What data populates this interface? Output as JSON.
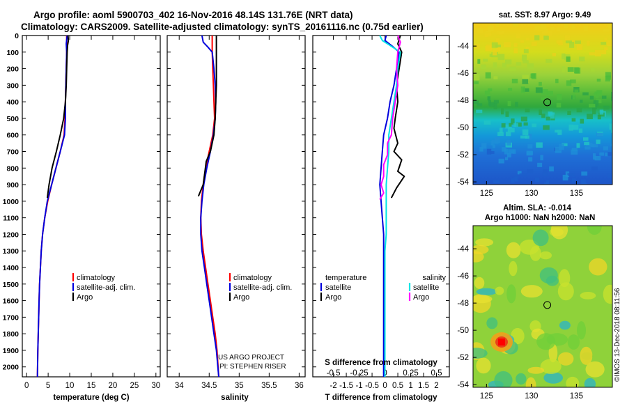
{
  "header": {
    "line1": "Argo profile: aoml 5900703_402 16-Nov-2016 48.14S 131.76E (NRT data)",
    "line2": "Climatology: CARS2009. Satellite-adjusted climatology: synTS_20161116.nc (0.75d earlier)"
  },
  "notes": {
    "project": "US ARGO PROJECT",
    "pi": "PI: STEPHEN RISER",
    "credit": "©IMOS 13-Dec-2018 08:11:56"
  },
  "colors": {
    "climatology": "#ff0000",
    "satellite": "#0000dd",
    "argo": "#000000",
    "satellite_salinity": "#00e5e5",
    "argo_salinity": "#ff00ff"
  },
  "chart_data": [
    {
      "type": "line",
      "name": "temperature",
      "xlabel": "temperature (deg C)",
      "xlim": [
        -1,
        31
      ],
      "ylim": [
        2060,
        0
      ],
      "xticks": [
        "0",
        "5",
        "10",
        "15",
        "20",
        "25",
        "30"
      ],
      "yticks": [
        "0",
        "100",
        "200",
        "300",
        "400",
        "500",
        "600",
        "700",
        "800",
        "900",
        "1000",
        "1100",
        "1200",
        "1300",
        "1400",
        "1500",
        "1600",
        "1700",
        "1800",
        "1900",
        "2000"
      ],
      "legend": {
        "placement": "bottom-right",
        "entries": [
          "climatology",
          "satellite-adj. clim.",
          "Argo"
        ]
      },
      "series": [
        {
          "name": "climatology",
          "color": "#ff0000",
          "x": [
            9.3,
            9.3,
            9.2,
            9.1,
            9.0,
            8.9,
            8.7,
            7.8,
            6.8,
            5.8,
            4.9,
            4.2,
            3.7,
            3.4,
            3.2,
            3.0,
            2.9,
            2.8,
            2.7,
            2.6,
            2.5
          ],
          "y": [
            0,
            100,
            200,
            300,
            400,
            500,
            600,
            700,
            800,
            900,
            1000,
            1100,
            1200,
            1300,
            1400,
            1500,
            1600,
            1700,
            1800,
            1900,
            2060
          ]
        },
        {
          "name": "satellite-adj. clim.",
          "color": "#0000dd",
          "x": [
            9.4,
            9.2,
            9.3,
            9.2,
            9.1,
            9.0,
            9.0,
            8.8,
            7.8,
            6.8,
            5.8,
            4.8,
            4.2,
            3.7,
            3.4,
            3.2,
            3.0,
            2.9,
            2.8,
            2.7,
            2.6,
            2.5
          ],
          "y": [
            0,
            50,
            100,
            200,
            300,
            400,
            500,
            600,
            700,
            800,
            900,
            1000,
            1100,
            1200,
            1300,
            1400,
            1500,
            1600,
            1700,
            1800,
            1900,
            2060
          ]
        },
        {
          "name": "Argo",
          "color": "#000000",
          "x": [
            9.6,
            9.7,
            9.5,
            9.4,
            9.3,
            9.2,
            9.0,
            8.6,
            7.8,
            6.9,
            5.9,
            5.2,
            4.8
          ],
          "y": [
            0,
            30,
            60,
            100,
            200,
            300,
            400,
            500,
            600,
            700,
            800,
            900,
            980
          ]
        }
      ]
    },
    {
      "type": "line",
      "name": "salinity",
      "xlabel": "salinity",
      "xlim": [
        33.8,
        36.1
      ],
      "ylim": [
        2060,
        0
      ],
      "xticks": [
        "34",
        "34.5",
        "35",
        "35.5",
        "36"
      ],
      "legend": {
        "placement": "bottom-right",
        "entries": [
          "climatology",
          "satellite-adj. clim.",
          "Argo"
        ]
      },
      "series": [
        {
          "name": "climatology",
          "color": "#ff0000",
          "x": [
            34.55,
            34.55,
            34.56,
            34.57,
            34.58,
            34.59,
            34.56,
            34.5,
            34.44,
            34.4,
            34.37,
            34.36,
            34.37,
            34.4,
            34.44,
            34.48,
            34.52,
            34.56,
            34.6,
            34.63,
            34.66
          ],
          "y": [
            0,
            100,
            200,
            300,
            400,
            500,
            600,
            700,
            800,
            900,
            1000,
            1100,
            1200,
            1300,
            1400,
            1500,
            1600,
            1700,
            1800,
            1900,
            2060
          ]
        },
        {
          "name": "satellite-adj. clim.",
          "color": "#0000dd",
          "x": [
            34.38,
            34.4,
            34.48,
            34.55,
            34.58,
            34.6,
            34.61,
            34.6,
            34.57,
            34.52,
            34.46,
            34.41,
            34.38,
            34.36,
            34.36,
            34.38,
            34.42,
            34.46,
            34.5,
            34.54,
            34.58,
            34.62,
            34.66
          ],
          "y": [
            0,
            40,
            70,
            100,
            200,
            300,
            400,
            500,
            600,
            700,
            800,
            900,
            1000,
            1100,
            1200,
            1300,
            1400,
            1500,
            1600,
            1700,
            1800,
            1900,
            2060
          ]
        },
        {
          "name": "Argo",
          "color": "#000000",
          "x": [
            34.62,
            34.62,
            34.62,
            34.62,
            34.61,
            34.6,
            34.58,
            34.52,
            34.45,
            34.43,
            34.4,
            34.32
          ],
          "y": [
            0,
            100,
            200,
            300,
            400,
            500,
            600,
            700,
            760,
            820,
            900,
            970
          ]
        }
      ]
    },
    {
      "type": "line",
      "name": "difference from climatology",
      "xlabel": "T difference from climatology",
      "xlim": [
        -2.8,
        2.5
      ],
      "ylim": [
        2060,
        0
      ],
      "xticks": [
        "-2",
        "-1.5",
        "-1",
        "-0.5",
        "0",
        "0.5",
        "1",
        "1.5",
        "2"
      ],
      "secondary_axis": {
        "label": "S difference from climatology",
        "xlim": [
          -0.7,
          0.625
        ],
        "xticks": [
          "-0.5",
          "-0.25",
          "0",
          "0.25",
          "0.5"
        ]
      },
      "legend": {
        "placement": "bottom",
        "temperature_heading": "temperature",
        "salinity_heading": "salinity",
        "temperature_entries": [
          "satellite",
          "Argo"
        ],
        "salinity_entries": [
          "satellite",
          "Argo"
        ]
      },
      "series": [
        {
          "name": "temperature satellite",
          "color": "#0000dd",
          "x": [
            0.05,
            0.0,
            0.25,
            0.55,
            0.45,
            0.35,
            0.2,
            0.1,
            -0.05,
            -0.1,
            -0.15,
            -0.2,
            -0.15,
            -0.1,
            -0.05,
            -0.05,
            -0.05,
            -0.05,
            -0.05,
            -0.05,
            -0.05,
            -0.05
          ],
          "y": [
            0,
            30,
            60,
            100,
            200,
            300,
            400,
            500,
            600,
            700,
            800,
            900,
            1000,
            1100,
            1200,
            1300,
            1400,
            1500,
            1600,
            1700,
            1800,
            2060
          ]
        },
        {
          "name": "temperature Argo",
          "color": "#000000",
          "x": [
            0.6,
            0.5,
            0.65,
            0.55,
            0.45,
            0.5,
            0.4,
            0.35,
            0.5,
            0.35,
            0.65,
            0.5,
            0.75,
            0.45,
            0.25
          ],
          "y": [
            0,
            50,
            100,
            200,
            300,
            400,
            500,
            560,
            650,
            700,
            750,
            820,
            850,
            920,
            980
          ]
        },
        {
          "name": "salinity satellite",
          "color": "#00e5e5",
          "x": [
            -0.2,
            -0.1,
            0.2,
            0.6,
            0.5,
            0.45,
            0.35,
            0.25,
            0.15,
            0.15,
            0.1,
            0.05,
            0.05,
            0.05,
            0.05,
            0.0,
            0.0,
            0.0,
            0.0,
            0.0,
            0.0,
            0.0
          ],
          "y": [
            0,
            30,
            60,
            100,
            200,
            300,
            400,
            500,
            600,
            700,
            800,
            900,
            1000,
            1100,
            1200,
            1300,
            1400,
            1500,
            1600,
            1700,
            1800,
            2060
          ]
        },
        {
          "name": "salinity Argo",
          "color": "#ff00ff",
          "x": [
            0.5,
            0.6,
            0.5,
            0.45,
            0.5,
            0.4,
            0.3,
            0.25,
            0.1,
            0.1,
            -0.05,
            -0.05,
            -0.15,
            -0.05,
            -0.2
          ],
          "y": [
            0,
            40,
            100,
            200,
            300,
            400,
            500,
            600,
            650,
            720,
            780,
            850,
            900,
            950,
            990
          ]
        }
      ]
    },
    {
      "type": "heatmap",
      "name": "satellite SST map",
      "title": "sat. SST: 8.97 Argo: 9.49",
      "xlim": [
        123.5,
        139
      ],
      "ylim": [
        -54.2,
        -42.3
      ],
      "xticks": [
        "125",
        "130",
        "135"
      ],
      "yticks": [
        "-44",
        "-46",
        "-48",
        "-50",
        "-52",
        "-54"
      ],
      "marker": {
        "lon": 131.76,
        "lat": -48.14
      }
    },
    {
      "type": "heatmap",
      "name": "altimetry SLA map",
      "title": "Altim. SLA: -0.014",
      "subtitle": "Argo h1000: NaN h2000: NaN",
      "xlim": [
        123.5,
        139
      ],
      "ylim": [
        -54.2,
        -42.3
      ],
      "xticks": [
        "125",
        "130",
        "135"
      ],
      "yticks": [
        "-44",
        "-46",
        "-48",
        "-50",
        "-52",
        "-54"
      ],
      "marker": {
        "lon": 131.76,
        "lat": -48.14
      }
    }
  ]
}
